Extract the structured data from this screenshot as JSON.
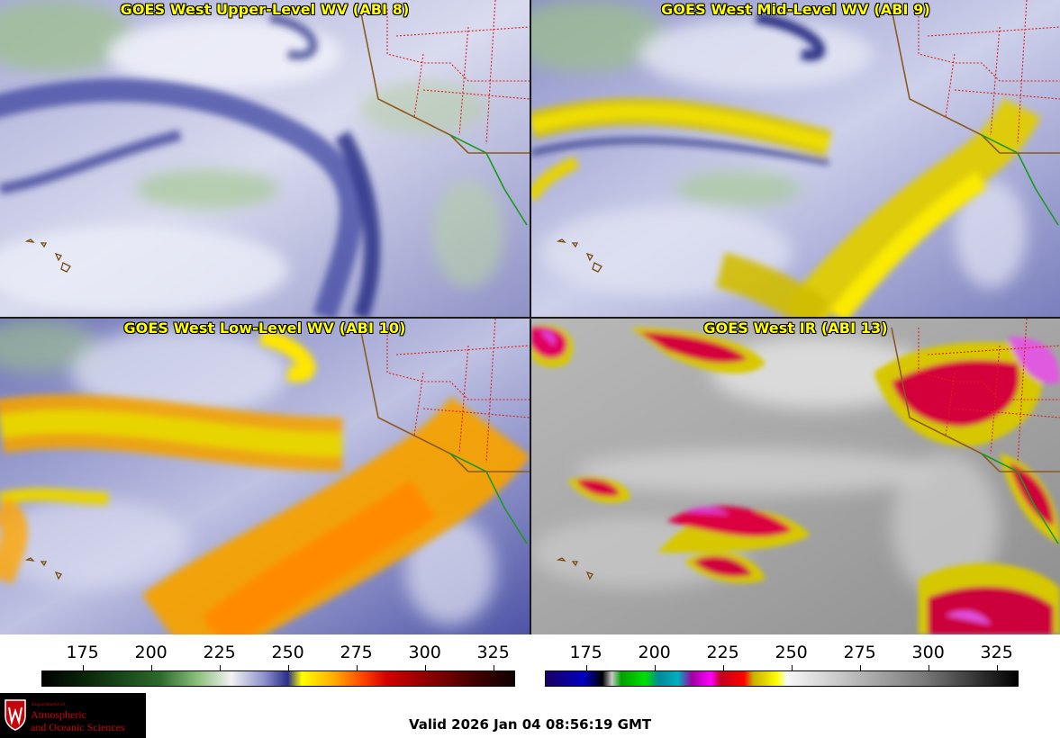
{
  "panels": [
    {
      "id": "p1",
      "title": "GOES West Upper-Level WV (ABI 8)",
      "style": "wv-upper"
    },
    {
      "id": "p2",
      "title": "GOES West Mid-Level WV (ABI 9)",
      "style": "wv-mid"
    },
    {
      "id": "p3",
      "title": "GOES West Low-Level WV (ABI 10)",
      "style": "wv-low"
    },
    {
      "id": "p4",
      "title": "GOES West IR (ABI 13)",
      "style": "ir"
    }
  ],
  "colorbars": {
    "wv": {
      "ticks": [
        "175",
        "200",
        "225",
        "250",
        "275",
        "300",
        "325"
      ],
      "range": [
        160,
        333
      ]
    },
    "ir": {
      "ticks": [
        "175",
        "200",
        "225",
        "250",
        "275",
        "300",
        "325"
      ],
      "range": [
        160,
        333
      ]
    }
  },
  "footer": {
    "valid_text": "Valid 2026 Jan 04 08:56:19 GMT",
    "logo_dept": "Department of",
    "logo_line1": "Atmospheric",
    "logo_line2": "and Oceanic Sciences"
  },
  "colors": {
    "logo_red": "#c5050c",
    "title_yellow": "#ffff00",
    "state_border": "#e0201a",
    "coastline": "#8b5a1e",
    "mexico_border": "#1a9a1a"
  }
}
